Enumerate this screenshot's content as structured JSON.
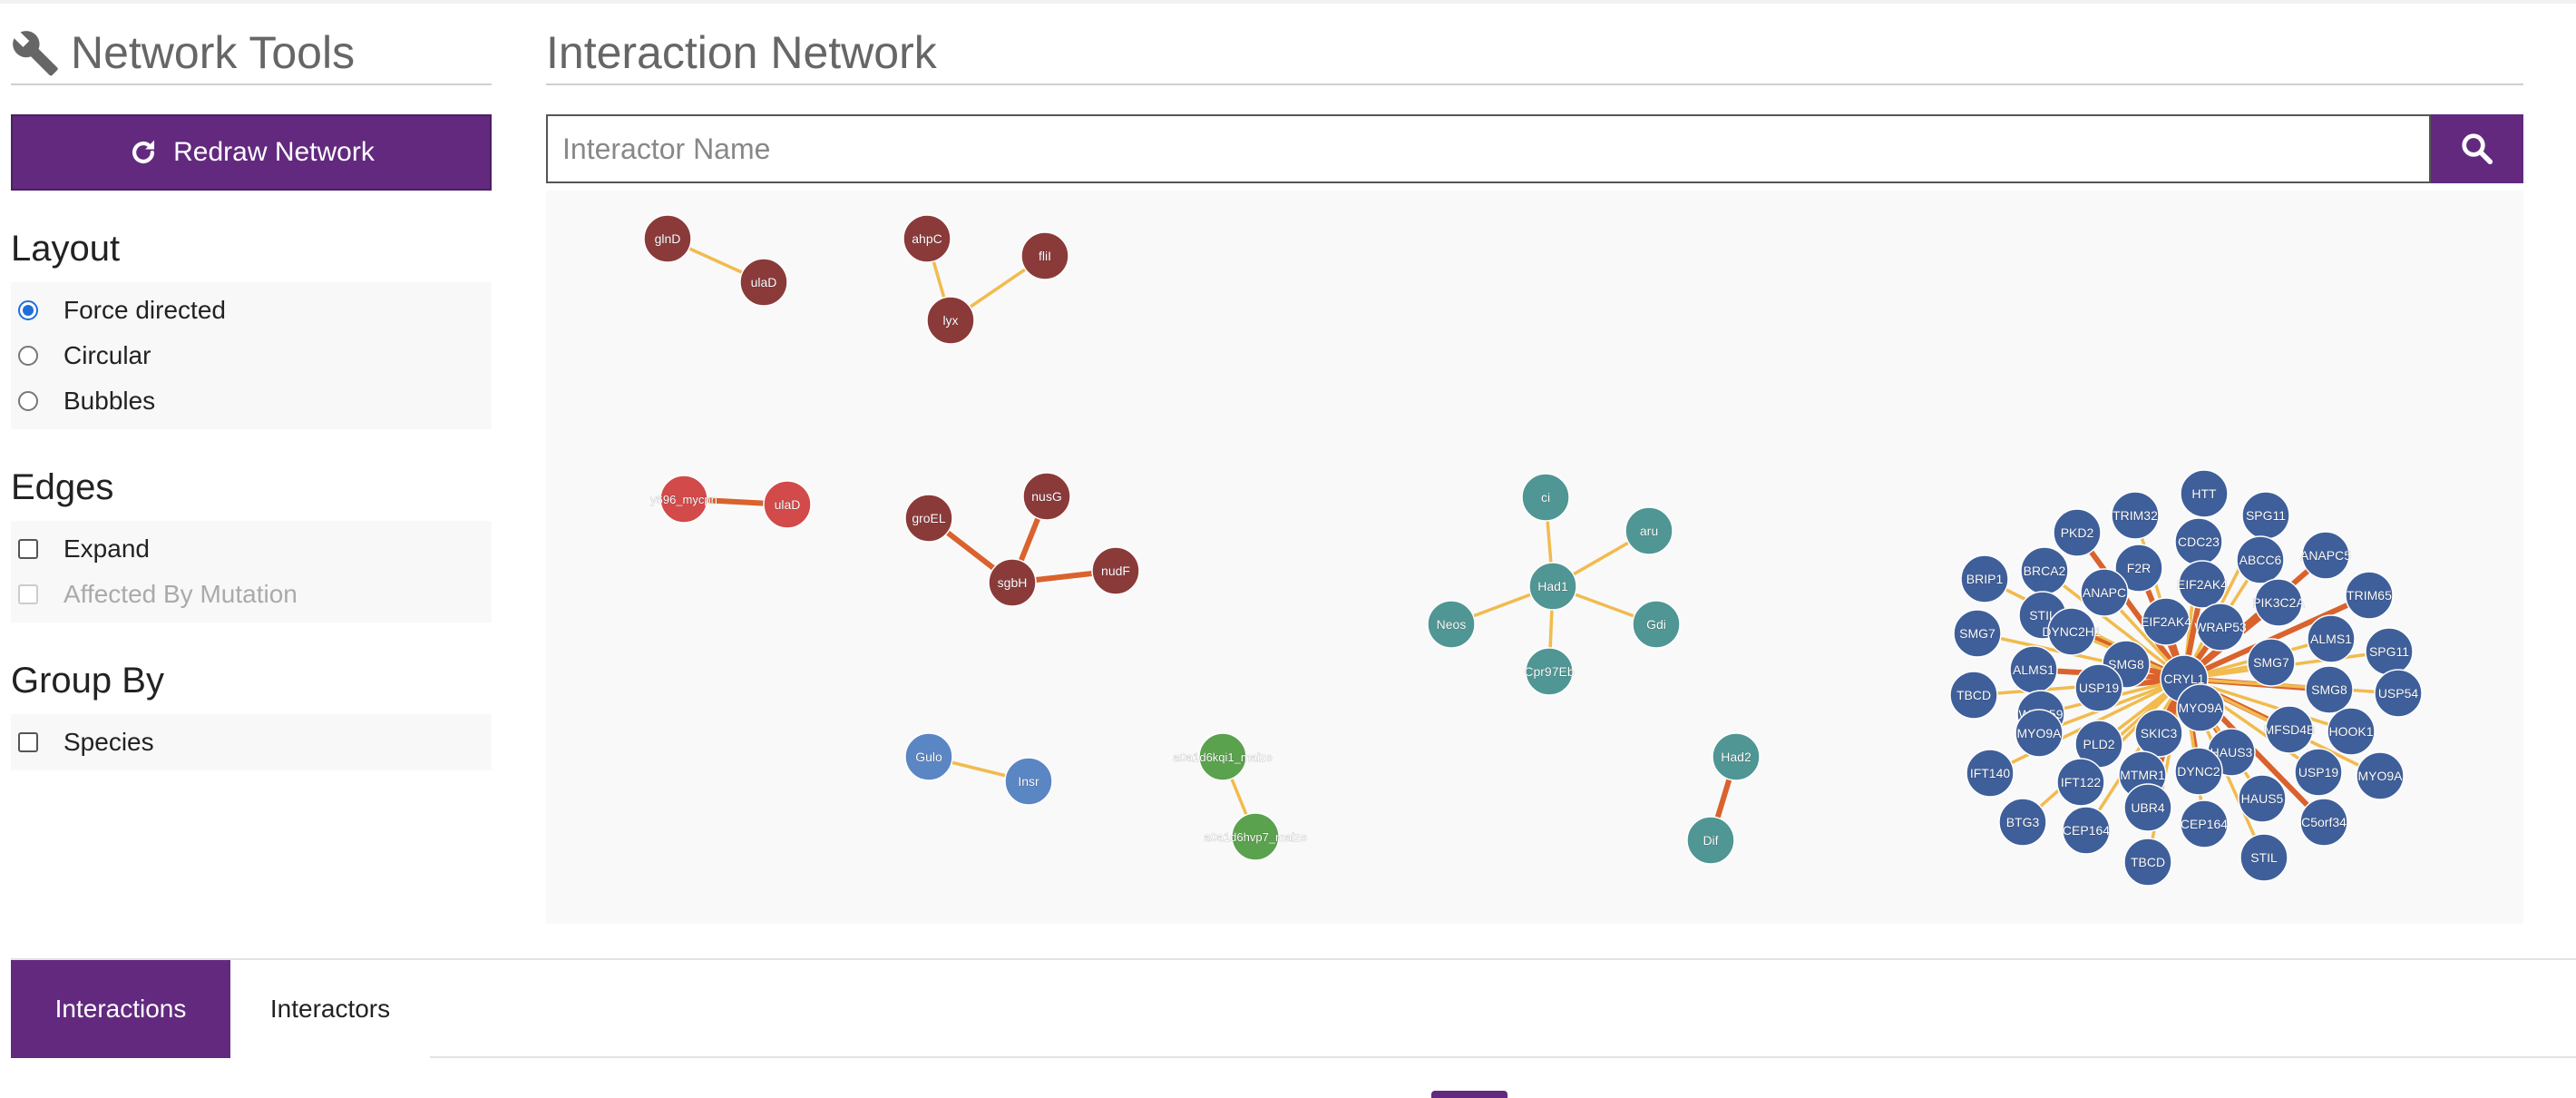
{
  "sidebar": {
    "title": "Network Tools",
    "redraw_label": "Redraw Network",
    "layout": {
      "heading": "Layout",
      "options": [
        {
          "label": "Force directed",
          "selected": true
        },
        {
          "label": "Circular",
          "selected": false
        },
        {
          "label": "Bubbles",
          "selected": false
        }
      ]
    },
    "edges": {
      "heading": "Edges",
      "options": [
        {
          "label": "Expand",
          "checked": false,
          "disabled": false
        },
        {
          "label": "Affected By Mutation",
          "checked": false,
          "disabled": true
        }
      ]
    },
    "group_by": {
      "heading": "Group By",
      "options": [
        {
          "label": "Species",
          "checked": false
        }
      ]
    }
  },
  "main": {
    "title": "Interaction Network",
    "search_placeholder": "Interactor Name"
  },
  "tabs": {
    "interactions": "Interactions",
    "interactors": "Interactors"
  },
  "colors": {
    "accent": "#62297e",
    "node_darkred": "#8b3a3a",
    "node_red": "#d24a4a",
    "node_teal": "#4f9694",
    "node_blue_light": "#5b86c4",
    "node_green": "#5aa24e",
    "node_blue_dark": "#3f5f9a",
    "edge_weak": "#f1bb4e",
    "edge_strong": "#d9622d"
  },
  "network": {
    "nodes": [
      {
        "id": "glnD",
        "label": "glnD",
        "color": "darkred"
      },
      {
        "id": "ulaD1",
        "label": "ulaD",
        "color": "darkred"
      },
      {
        "id": "ahpC",
        "label": "ahpC",
        "color": "darkred"
      },
      {
        "id": "fliI",
        "label": "fliI",
        "color": "darkred"
      },
      {
        "id": "lyx",
        "label": "lyx",
        "color": "darkred"
      },
      {
        "id": "myc",
        "label": "y696_mycpn",
        "color": "red"
      },
      {
        "id": "ulaD2",
        "label": "ulaD",
        "color": "red"
      },
      {
        "id": "groEL",
        "label": "groEL",
        "color": "darkred"
      },
      {
        "id": "nusG",
        "label": "nusG",
        "color": "darkred"
      },
      {
        "id": "sgbH",
        "label": "sgbH",
        "color": "darkred"
      },
      {
        "id": "nudF",
        "label": "nudF",
        "color": "darkred"
      },
      {
        "id": "ci",
        "label": "ci",
        "color": "teal"
      },
      {
        "id": "aru",
        "label": "aru",
        "color": "teal"
      },
      {
        "id": "Had1",
        "label": "Had1",
        "color": "teal"
      },
      {
        "id": "Neos",
        "label": "Neos",
        "color": "teal"
      },
      {
        "id": "Gdi",
        "label": "Gdi",
        "color": "teal"
      },
      {
        "id": "Cpr97Eb",
        "label": "Cpr97Eb",
        "color": "teal"
      },
      {
        "id": "Gulo",
        "label": "Gulo",
        "color": "blue_light"
      },
      {
        "id": "Insr",
        "label": "Insr",
        "color": "blue_light"
      },
      {
        "id": "kq",
        "label": "a0a1d6kqi1_maize",
        "color": "green"
      },
      {
        "id": "hv",
        "label": "a0a1d6hvp7_maize",
        "color": "green"
      },
      {
        "id": "Had2",
        "label": "Had2",
        "color": "teal"
      },
      {
        "id": "Dif",
        "label": "Dif",
        "color": "teal"
      },
      {
        "id": "CRYL1",
        "label": "CRYL1",
        "color": "blue_dark"
      },
      {
        "id": "b1",
        "label": "HTT",
        "color": "blue_dark"
      },
      {
        "id": "b2",
        "label": "TRIM32",
        "color": "blue_dark"
      },
      {
        "id": "b3",
        "label": "SPG11",
        "color": "blue_dark"
      },
      {
        "id": "b4",
        "label": "PKD2",
        "color": "blue_dark"
      },
      {
        "id": "b5",
        "label": "CDC23",
        "color": "blue_dark"
      },
      {
        "id": "b6",
        "label": "ANAPC5",
        "color": "blue_dark"
      },
      {
        "id": "b7",
        "label": "BRCA2",
        "color": "blue_dark"
      },
      {
        "id": "b8",
        "label": "F2R",
        "color": "blue_dark"
      },
      {
        "id": "b9",
        "label": "ABCC6",
        "color": "blue_dark"
      },
      {
        "id": "b10",
        "label": "BRIP1",
        "color": "blue_dark"
      },
      {
        "id": "b11",
        "label": "ANAPC",
        "color": "blue_dark"
      },
      {
        "id": "b12",
        "label": "EIF2AK4",
        "color": "blue_dark"
      },
      {
        "id": "b13",
        "label": "TRIM65",
        "color": "blue_dark"
      },
      {
        "id": "b14",
        "label": "STIL",
        "color": "blue_dark"
      },
      {
        "id": "b15",
        "label": "PIK3C2A",
        "color": "blue_dark"
      },
      {
        "id": "b16",
        "label": "SMG7",
        "color": "blue_dark"
      },
      {
        "id": "b17",
        "label": "DYNC2H1",
        "color": "blue_dark"
      },
      {
        "id": "b18",
        "label": "EIF2AK4",
        "color": "blue_dark"
      },
      {
        "id": "b19",
        "label": "WRAP53",
        "color": "blue_dark"
      },
      {
        "id": "b20",
        "label": "ALMS1",
        "color": "blue_dark"
      },
      {
        "id": "b21",
        "label": "SPG11",
        "color": "blue_dark"
      },
      {
        "id": "b22",
        "label": "ALMS1",
        "color": "blue_dark"
      },
      {
        "id": "b23",
        "label": "SMG8",
        "color": "blue_dark"
      },
      {
        "id": "b24",
        "label": "SMG7",
        "color": "blue_dark"
      },
      {
        "id": "b25",
        "label": "TBCD",
        "color": "blue_dark"
      },
      {
        "id": "b26",
        "label": "USP19",
        "color": "blue_dark"
      },
      {
        "id": "b27",
        "label": "SMG8",
        "color": "blue_dark"
      },
      {
        "id": "b28",
        "label": "USP54",
        "color": "blue_dark"
      },
      {
        "id": "b29",
        "label": "MYO9A",
        "color": "blue_dark"
      },
      {
        "id": "b30",
        "label": "WDR59",
        "color": "blue_dark"
      },
      {
        "id": "b31",
        "label": "MFSD4B",
        "color": "blue_dark"
      },
      {
        "id": "b32",
        "label": "HOOK1",
        "color": "blue_dark"
      },
      {
        "id": "b33",
        "label": "SKIC3",
        "color": "blue_dark"
      },
      {
        "id": "b34",
        "label": "PLD2",
        "color": "blue_dark"
      },
      {
        "id": "b35",
        "label": "MYO9A",
        "color": "blue_dark"
      },
      {
        "id": "b36",
        "label": "HAUS3",
        "color": "blue_dark"
      },
      {
        "id": "b37",
        "label": "IFT140",
        "color": "blue_dark"
      },
      {
        "id": "b38",
        "label": "DYNC2",
        "color": "blue_dark"
      },
      {
        "id": "b39",
        "label": "USP19",
        "color": "blue_dark"
      },
      {
        "id": "b40",
        "label": "MYO9A",
        "color": "blue_dark"
      },
      {
        "id": "b41",
        "label": "IFT122",
        "color": "blue_dark"
      },
      {
        "id": "b42",
        "label": "MTMR1",
        "color": "blue_dark"
      },
      {
        "id": "b43",
        "label": "UBR4",
        "color": "blue_dark"
      },
      {
        "id": "b44",
        "label": "HAUS5",
        "color": "blue_dark"
      },
      {
        "id": "b45",
        "label": "C5orf34",
        "color": "blue_dark"
      },
      {
        "id": "b46",
        "label": "BTG3",
        "color": "blue_dark"
      },
      {
        "id": "b47",
        "label": "CEP164",
        "color": "blue_dark"
      },
      {
        "id": "b48",
        "label": "CEP164",
        "color": "blue_dark"
      },
      {
        "id": "b49",
        "label": "TBCD",
        "color": "blue_dark"
      },
      {
        "id": "b50",
        "label": "STIL",
        "color": "blue_dark"
      }
    ],
    "edges": [
      {
        "a": "glnD",
        "b": "ulaD1",
        "strength": "weak"
      },
      {
        "a": "ahpC",
        "b": "lyx",
        "strength": "weak"
      },
      {
        "a": "fliI",
        "b": "lyx",
        "strength": "weak"
      },
      {
        "a": "myc",
        "b": "ulaD2",
        "strength": "strong"
      },
      {
        "a": "groEL",
        "b": "sgbH",
        "strength": "strong"
      },
      {
        "a": "nusG",
        "b": "sgbH",
        "strength": "strong"
      },
      {
        "a": "nudF",
        "b": "sgbH",
        "strength": "strong"
      },
      {
        "a": "ci",
        "b": "Had1",
        "strength": "weak"
      },
      {
        "a": "aru",
        "b": "Had1",
        "strength": "weak"
      },
      {
        "a": "Neos",
        "b": "Had1",
        "strength": "weak"
      },
      {
        "a": "Gdi",
        "b": "Had1",
        "strength": "weak"
      },
      {
        "a": "Cpr97Eb",
        "b": "Had1",
        "strength": "weak"
      },
      {
        "a": "Gulo",
        "b": "Insr",
        "strength": "weak"
      },
      {
        "a": "kq",
        "b": "hv",
        "strength": "weak"
      },
      {
        "a": "Had2",
        "b": "Dif",
        "strength": "strong"
      }
    ],
    "hub": "CRYL1"
  }
}
